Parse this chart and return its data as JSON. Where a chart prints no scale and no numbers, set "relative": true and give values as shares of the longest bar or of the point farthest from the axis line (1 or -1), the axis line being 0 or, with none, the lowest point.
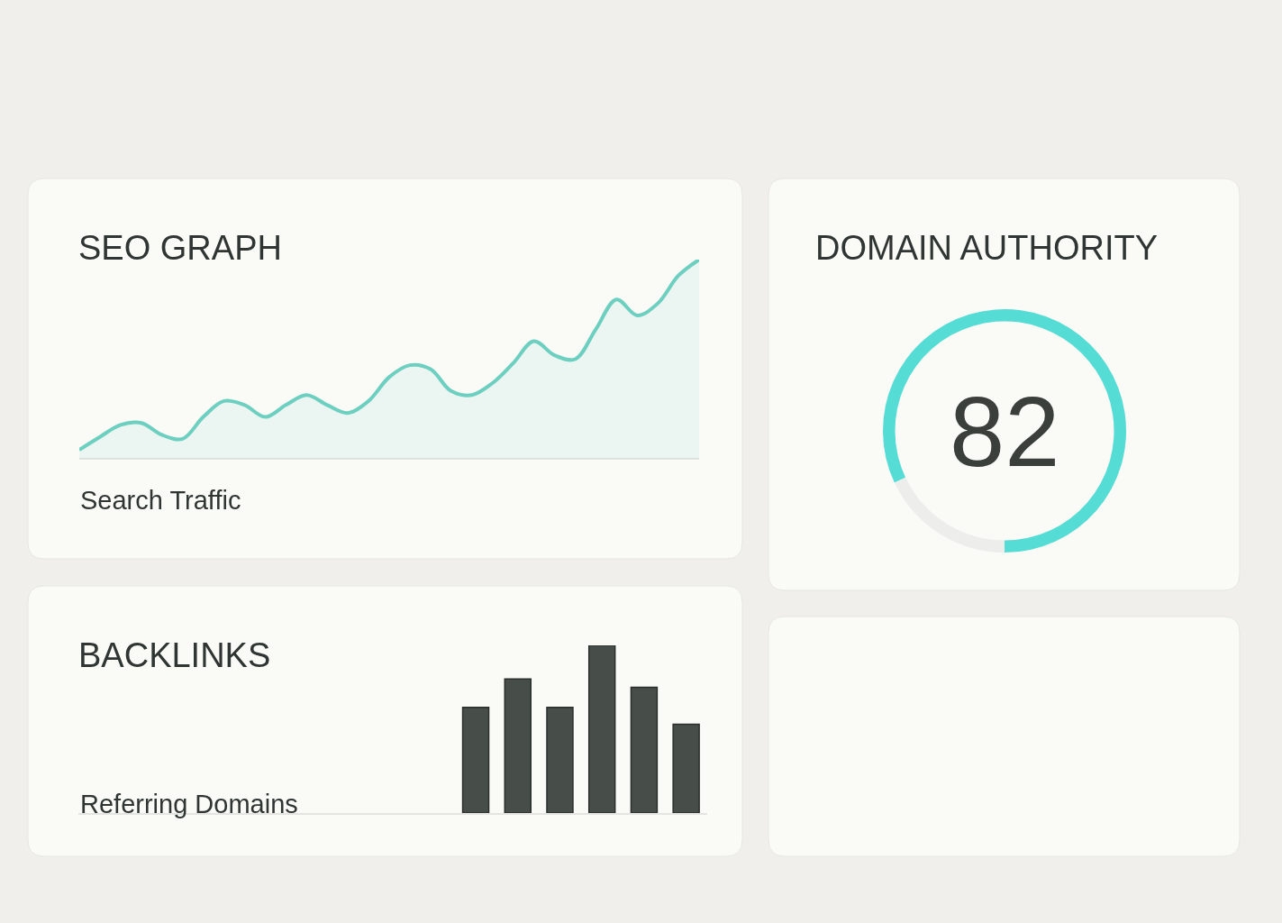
{
  "chart_data": [
    {
      "type": "area",
      "title": "SEO GRAPH",
      "xlabel": "Search Traffic",
      "relative": true,
      "categories": [
        null,
        null,
        null,
        null,
        null,
        null,
        null,
        null,
        null,
        null,
        null,
        null,
        null,
        null,
        null,
        null,
        null,
        null,
        null,
        null,
        null,
        null,
        null,
        null,
        null,
        null,
        null,
        null,
        null,
        null,
        null
      ],
      "series": [
        {
          "color": "#6ccfc0",
          "values": [
            0.045,
            0.11,
            0.17,
            0.18,
            0.12,
            0.1,
            0.21,
            0.29,
            0.27,
            0.21,
            0.27,
            0.32,
            0.27,
            0.23,
            0.29,
            0.41,
            0.47,
            0.45,
            0.34,
            0.32,
            0.38,
            0.48,
            0.59,
            0.52,
            0.5,
            0.65,
            0.8,
            0.72,
            0.78,
            0.92,
            1.0
          ]
        }
      ]
    },
    {
      "type": "donut",
      "title": "DOMAIN AUTHORITY",
      "categories": [
        null,
        null
      ],
      "values": [
        82,
        18
      ],
      "colors": [
        "#55dcd4",
        "#ededeb"
      ],
      "annotations": [
        "82"
      ]
    },
    {
      "type": "bar",
      "title": "BACKLINKS",
      "subtitle": "Referring Domains",
      "relative": true,
      "categories": [
        null,
        null,
        null,
        null,
        null,
        null
      ],
      "values": [
        0.63,
        0.8,
        0.63,
        1.0,
        0.75,
        0.53
      ],
      "color": "#474d48"
    }
  ]
}
